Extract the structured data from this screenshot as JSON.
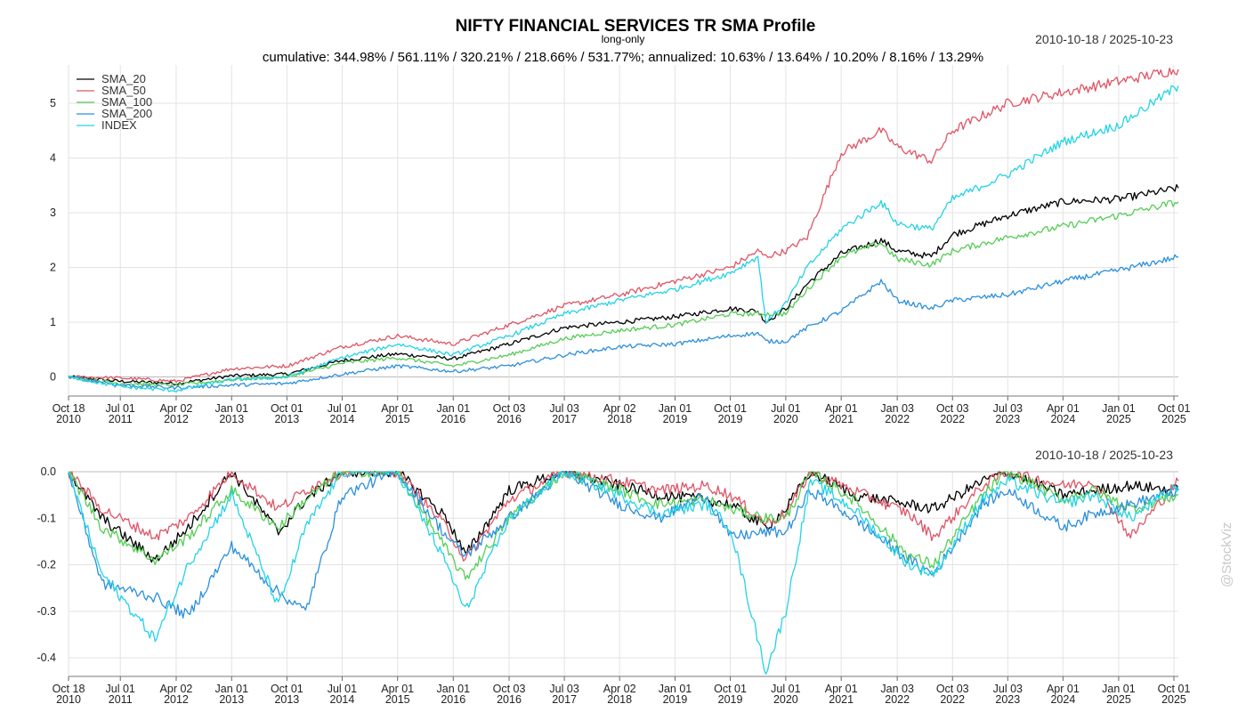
{
  "chart_data": [
    {
      "type": "line",
      "title": "NIFTY FINANCIAL SERVICES TR SMA Profile",
      "subtitle": "long-only",
      "stats_line": "cumulative: 344.98% / 561.11% / 320.21% / 218.66% / 531.77%; annualized: 10.63% / 13.64% / 10.20% / 8.16% / 13.29%",
      "date_range": "2010-10-18 / 2025-10-23",
      "legend_position": "top-left",
      "grid": true,
      "y_ticks": [
        "0",
        "1",
        "2",
        "3",
        "4",
        "5"
      ],
      "ylim": [
        -0.35,
        5.7
      ],
      "x_ticks": [
        {
          "date": "2010-10-18",
          "label_top": "Oct 18",
          "label_bottom": "2010"
        },
        {
          "date": "2011-07-01",
          "label_top": "Jul 01",
          "label_bottom": "2011"
        },
        {
          "date": "2012-04-02",
          "label_top": "Apr 02",
          "label_bottom": "2012"
        },
        {
          "date": "2013-01-01",
          "label_top": "Jan 01",
          "label_bottom": "2013"
        },
        {
          "date": "2013-10-01",
          "label_top": "Oct 01",
          "label_bottom": "2013"
        },
        {
          "date": "2014-07-01",
          "label_top": "Jul 01",
          "label_bottom": "2014"
        },
        {
          "date": "2015-04-01",
          "label_top": "Apr 01",
          "label_bottom": "2015"
        },
        {
          "date": "2016-01-01",
          "label_top": "Jan 01",
          "label_bottom": "2016"
        },
        {
          "date": "2016-10-03",
          "label_top": "Oct 03",
          "label_bottom": "2016"
        },
        {
          "date": "2017-07-03",
          "label_top": "Jul 03",
          "label_bottom": "2017"
        },
        {
          "date": "2018-04-02",
          "label_top": "Apr 02",
          "label_bottom": "2018"
        },
        {
          "date": "2019-01-01",
          "label_top": "Jan 01",
          "label_bottom": "2019"
        },
        {
          "date": "2019-10-01",
          "label_top": "Oct 01",
          "label_bottom": "2019"
        },
        {
          "date": "2020-07-01",
          "label_top": "Jul 01",
          "label_bottom": "2020"
        },
        {
          "date": "2021-04-01",
          "label_top": "Apr 01",
          "label_bottom": "2021"
        },
        {
          "date": "2022-01-03",
          "label_top": "Jan 03",
          "label_bottom": "2022"
        },
        {
          "date": "2022-10-03",
          "label_top": "Oct 03",
          "label_bottom": "2022"
        },
        {
          "date": "2023-07-03",
          "label_top": "Jul 03",
          "label_bottom": "2023"
        },
        {
          "date": "2024-04-01",
          "label_top": "Apr 01",
          "label_bottom": "2024"
        },
        {
          "date": "2025-01-01",
          "label_top": "Jan 01",
          "label_bottom": "2025"
        },
        {
          "date": "2025-10-01",
          "label_top": "Oct 01",
          "label_bottom": "2025"
        }
      ],
      "x": [
        "2010-10-18",
        "2011-07-01",
        "2012-04-02",
        "2013-01-01",
        "2013-10-01",
        "2014-07-01",
        "2015-04-01",
        "2016-01-01",
        "2016-10-03",
        "2017-07-03",
        "2018-04-02",
        "2019-01-01",
        "2019-10-01",
        "2020-02-14",
        "2020-03-25",
        "2020-07-01",
        "2020-10-15",
        "2021-04-01",
        "2021-10-15",
        "2022-01-03",
        "2022-06-20",
        "2022-10-03",
        "2023-07-03",
        "2024-04-01",
        "2025-01-01",
        "2025-10-23"
      ],
      "series": [
        {
          "name": "SMA_20",
          "color": "#000000",
          "values": [
            0,
            -0.08,
            -0.12,
            0.02,
            0.05,
            0.3,
            0.42,
            0.33,
            0.6,
            0.9,
            1.0,
            1.1,
            1.25,
            1.2,
            1.0,
            1.25,
            1.7,
            2.25,
            2.5,
            2.3,
            2.2,
            2.6,
            2.95,
            3.2,
            3.25,
            3.45
          ]
        },
        {
          "name": "SMA_50",
          "color": "#dd5566",
          "values": [
            0,
            -0.02,
            -0.08,
            0.15,
            0.2,
            0.55,
            0.75,
            0.6,
            0.95,
            1.3,
            1.5,
            1.75,
            2.0,
            2.3,
            2.2,
            2.3,
            2.55,
            4.1,
            4.5,
            4.2,
            3.95,
            4.5,
            5.0,
            5.2,
            5.4,
            5.62
          ]
        },
        {
          "name": "SMA_100",
          "color": "#55cc55",
          "values": [
            0,
            -0.12,
            -0.15,
            -0.05,
            0.0,
            0.25,
            0.35,
            0.2,
            0.4,
            0.7,
            0.85,
            0.95,
            1.15,
            1.15,
            1.15,
            1.15,
            1.6,
            2.2,
            2.45,
            2.15,
            2.05,
            2.3,
            2.55,
            2.75,
            2.95,
            3.2
          ]
        },
        {
          "name": "SMA_200",
          "color": "#2a8fdb",
          "values": [
            0,
            -0.15,
            -0.2,
            -0.15,
            -0.12,
            0.05,
            0.2,
            0.1,
            0.2,
            0.4,
            0.55,
            0.6,
            0.75,
            0.8,
            0.65,
            0.65,
            0.9,
            1.2,
            1.75,
            1.4,
            1.25,
            1.4,
            1.5,
            1.75,
            1.95,
            2.19
          ]
        },
        {
          "name": "INDEX",
          "color": "#22d3e6",
          "values": [
            0,
            -0.18,
            -0.25,
            -0.05,
            0.0,
            0.35,
            0.6,
            0.4,
            0.75,
            1.15,
            1.4,
            1.6,
            1.9,
            2.2,
            1.0,
            1.35,
            2.0,
            2.7,
            3.2,
            2.8,
            2.7,
            3.25,
            3.7,
            4.3,
            4.6,
            5.32
          ]
        }
      ]
    },
    {
      "type": "line",
      "title": "",
      "date_range": "2010-10-18 / 2025-10-23",
      "grid": true,
      "y_ticks": [
        "0.0",
        "-0.1",
        "-0.2",
        "-0.3",
        "-0.4"
      ],
      "ylim": [
        -0.44,
        0.0
      ],
      "x": [
        "2010-10-18",
        "2011-04-01",
        "2011-12-20",
        "2012-06-01",
        "2013-01-01",
        "2013-08-20",
        "2014-01-01",
        "2014-07-01",
        "2015-04-01",
        "2015-12-01",
        "2016-03-01",
        "2016-10-03",
        "2017-07-03",
        "2018-04-02",
        "2018-10-15",
        "2019-06-01",
        "2019-10-01",
        "2020-03-25",
        "2020-07-01",
        "2020-11-01",
        "2021-06-01",
        "2022-03-01",
        "2022-07-01",
        "2023-03-01",
        "2023-07-03",
        "2024-04-01",
        "2024-09-01",
        "2025-03-01",
        "2025-10-23"
      ],
      "series": [
        {
          "name": "SMA_20",
          "color": "#000000",
          "values": [
            0,
            -0.1,
            -0.19,
            -0.12,
            0,
            -0.13,
            -0.06,
            0,
            0,
            -0.1,
            -0.18,
            -0.04,
            0,
            -0.03,
            -0.05,
            -0.06,
            -0.07,
            -0.12,
            -0.08,
            0,
            -0.05,
            -0.07,
            -0.08,
            -0.02,
            0,
            -0.05,
            -0.04,
            -0.03,
            -0.04
          ]
        },
        {
          "name": "SMA_50",
          "color": "#dd5566",
          "values": [
            0,
            -0.08,
            -0.14,
            -0.1,
            0,
            -0.08,
            -0.04,
            0,
            0,
            -0.12,
            -0.19,
            -0.06,
            0,
            -0.02,
            -0.04,
            -0.03,
            -0.05,
            -0.11,
            -0.09,
            0,
            -0.04,
            -0.09,
            -0.14,
            -0.03,
            0,
            -0.03,
            -0.02,
            -0.14,
            -0.02
          ]
        },
        {
          "name": "SMA_100",
          "color": "#55cc55",
          "values": [
            0,
            -0.12,
            -0.19,
            -0.14,
            -0.04,
            -0.12,
            -0.06,
            0,
            0,
            -0.17,
            -0.23,
            -0.1,
            0,
            -0.04,
            -0.07,
            -0.06,
            -0.08,
            -0.1,
            -0.1,
            0,
            -0.06,
            -0.18,
            -0.2,
            -0.05,
            0,
            -0.06,
            -0.04,
            -0.08,
            -0.05
          ]
        },
        {
          "name": "SMA_200",
          "color": "#2a8fdb",
          "values": [
            0,
            -0.24,
            -0.27,
            -0.31,
            -0.16,
            -0.26,
            -0.3,
            -0.05,
            0,
            -0.14,
            -0.18,
            -0.1,
            0,
            -0.07,
            -0.1,
            -0.05,
            -0.14,
            -0.13,
            -0.13,
            -0.04,
            -0.1,
            -0.19,
            -0.22,
            -0.07,
            -0.04,
            -0.12,
            -0.09,
            -0.07,
            -0.04
          ]
        },
        {
          "name": "INDEX",
          "color": "#22d3e6",
          "values": [
            0,
            -0.22,
            -0.36,
            -0.2,
            -0.05,
            -0.29,
            -0.12,
            0,
            0,
            -0.2,
            -0.3,
            -0.1,
            0,
            -0.05,
            -0.09,
            -0.07,
            -0.12,
            -0.43,
            -0.3,
            -0.02,
            -0.08,
            -0.2,
            -0.22,
            -0.06,
            -0.02,
            -0.07,
            -0.05,
            -0.1,
            -0.03
          ]
        }
      ]
    }
  ],
  "watermark": "@StockViz"
}
